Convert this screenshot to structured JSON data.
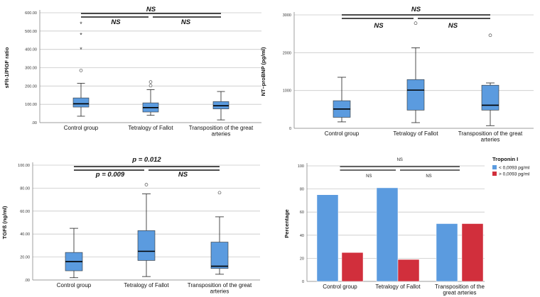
{
  "chart_data": [
    {
      "type": "box",
      "ylabel": "sFlt-1/PlGF ratio",
      "ylim": [
        0,
        600
      ],
      "ytick_labels": [
        ".00",
        "100.00",
        "200.00",
        "300.00",
        "400.00",
        "500.00",
        "600.00"
      ],
      "ytick_values": [
        0,
        100,
        200,
        300,
        400,
        500,
        600
      ],
      "categories": [
        "Control group",
        "Tetralogy of Fallot",
        [
          "Transposition of the great",
          "arteries"
        ]
      ],
      "boxes": [
        {
          "name": "Control group",
          "whisker_low": 35,
          "q1": 85,
          "median": 103,
          "q3": 135,
          "whisker_high": 215,
          "outliers": [
            285
          ],
          "extremes": [
            400,
            480,
            540
          ]
        },
        {
          "name": "Tetralogy of Fallot",
          "whisker_low": 40,
          "q1": 58,
          "median": 82,
          "q3": 108,
          "whisker_high": 180,
          "outliers": [
            202,
            222
          ],
          "extremes": []
        },
        {
          "name": "Transposition of the great arteries",
          "whisker_low": 15,
          "q1": 75,
          "median": 92,
          "q3": 115,
          "whisker_high": 170,
          "outliers": [],
          "extremes": []
        }
      ],
      "significance": {
        "overall": "NS",
        "left": "NS",
        "right": "NS"
      }
    },
    {
      "type": "box",
      "ylabel": "NT–proBNP (pg/ml)",
      "ylim": [
        0,
        3000
      ],
      "ytick_labels": [
        "0",
        "1000",
        "2000",
        "3000"
      ],
      "ytick_values": [
        0,
        1000,
        2000,
        3000
      ],
      "categories": [
        "Control group",
        "Tetralogy of Fallot",
        [
          "Transposition of the great",
          "arteries"
        ]
      ],
      "boxes": [
        {
          "name": "Control group",
          "whisker_low": 170,
          "q1": 290,
          "median": 510,
          "q3": 730,
          "whisker_high": 1350,
          "outliers": [],
          "extremes": []
        },
        {
          "name": "Tetralogy of Fallot",
          "whisker_low": 150,
          "q1": 480,
          "median": 1010,
          "q3": 1290,
          "whisker_high": 2130,
          "outliers": [
            2780
          ],
          "extremes": []
        },
        {
          "name": "Transposition of the great arteries",
          "whisker_low": 70,
          "q1": 480,
          "median": 610,
          "q3": 1140,
          "whisker_high": 1200,
          "outliers": [
            2460
          ],
          "extremes": []
        }
      ],
      "significance": {
        "overall": "NS",
        "left": "NS",
        "right": "NS"
      }
    },
    {
      "type": "box",
      "ylabel": "TGFß (ng/ml)",
      "ylim": [
        0,
        100
      ],
      "ytick_labels": [
        ".00",
        "20.00",
        "40.00",
        "60.00",
        "80.00",
        "100.00"
      ],
      "ytick_values": [
        0,
        20,
        40,
        60,
        80,
        100
      ],
      "categories": [
        "Control group",
        "Tetralogy of Fallot",
        [
          "Transposition of the great",
          "arteries"
        ]
      ],
      "boxes": [
        {
          "name": "Control group",
          "whisker_low": 2,
          "q1": 8,
          "median": 16,
          "q3": 24,
          "whisker_high": 45,
          "outliers": [],
          "extremes": []
        },
        {
          "name": "Tetralogy of Fallot",
          "whisker_low": 3,
          "q1": 17,
          "median": 25,
          "q3": 43,
          "whisker_high": 75,
          "outliers": [
            83
          ],
          "extremes": []
        },
        {
          "name": "Transposition of the great arteries",
          "whisker_low": 5,
          "q1": 10,
          "median": 12,
          "q3": 33,
          "whisker_high": 55,
          "outliers": [
            76
          ],
          "extremes": []
        }
      ],
      "significance": {
        "overall": "p = 0.012",
        "left": "p = 0.009",
        "right": "NS"
      }
    },
    {
      "type": "bar",
      "ylabel": "Percentage",
      "ylim": [
        0,
        100
      ],
      "ytick_labels": [
        "0",
        "20",
        "40",
        "60",
        "80",
        "100"
      ],
      "ytick_values": [
        0,
        20,
        40,
        60,
        80,
        100
      ],
      "categories": [
        "Control group",
        "Tetralogy of Fallot",
        [
          "Transposition of the",
          "great arteries"
        ]
      ],
      "legend_title": "Troponin I",
      "series": [
        {
          "name": "< 0,0093 pg/ml",
          "color": "#5b9bdf",
          "values": [
            75,
            81,
            50
          ]
        },
        {
          "name": "> 0,0093 pg/ml",
          "color": "#d12f3c",
          "values": [
            25,
            19,
            50
          ]
        }
      ],
      "significance": {
        "overall": "NS",
        "left": "NS",
        "right": "NS"
      }
    }
  ]
}
